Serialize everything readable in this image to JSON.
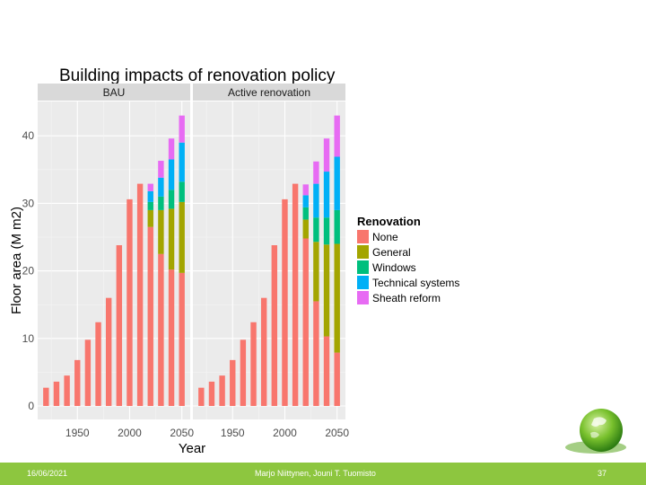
{
  "chart_data": {
    "type": "bar",
    "stacked": true,
    "title": "Building impacts of renovation policy",
    "xlabel": "Year",
    "ylabel": "Floor area (M m2)",
    "ylim": [
      0,
      44
    ],
    "yticks": [
      0,
      10,
      20,
      30,
      40
    ],
    "xlim": [
      1912,
      2058
    ],
    "xticks": [
      1950,
      2000,
      2050
    ],
    "legend": {
      "title": "Renovation",
      "position": "right",
      "entries": [
        "None",
        "General",
        "Windows",
        "Technical systems",
        "Sheath reform"
      ]
    },
    "colors": {
      "None": "#f8766d",
      "General": "#a3a500",
      "Windows": "#00bf7d",
      "Technical systems": "#00b0f6",
      "Sheath reform": "#e76bf3",
      "panel_bg": "#ebebeb",
      "strip_bg": "#d9d9d9",
      "grid_major": "#ffffff"
    },
    "panels": [
      {
        "name": "BAU",
        "bars": [
          {
            "x": 1920,
            "None": 2.7
          },
          {
            "x": 1930,
            "None": 3.6
          },
          {
            "x": 1940,
            "None": 4.5
          },
          {
            "x": 1950,
            "None": 6.8
          },
          {
            "x": 1960,
            "None": 9.8
          },
          {
            "x": 1970,
            "None": 12.4
          },
          {
            "x": 1980,
            "None": 16.0
          },
          {
            "x": 1990,
            "None": 23.8
          },
          {
            "x": 2000,
            "None": 30.6
          },
          {
            "x": 2010,
            "None": 32.9
          },
          {
            "x": 2020,
            "None": 26.5,
            "General": 2.5,
            "Windows": 1.2,
            "Technical systems": 1.6,
            "Sheath reform": 1.1
          },
          {
            "x": 2030,
            "None": 22.5,
            "General": 6.5,
            "Windows": 2.0,
            "Technical systems": 2.8,
            "Sheath reform": 2.5
          },
          {
            "x": 2040,
            "None": 20.2,
            "General": 9.0,
            "Windows": 2.8,
            "Technical systems": 4.5,
            "Sheath reform": 3.1
          },
          {
            "x": 2050,
            "None": 19.7,
            "General": 10.5,
            "Windows": 3.0,
            "Technical systems": 5.8,
            "Sheath reform": 4.0
          }
        ]
      },
      {
        "name": "Active renovation",
        "bars": [
          {
            "x": 1920,
            "None": 2.7
          },
          {
            "x": 1930,
            "None": 3.6
          },
          {
            "x": 1940,
            "None": 4.5
          },
          {
            "x": 1950,
            "None": 6.8
          },
          {
            "x": 1960,
            "None": 9.8
          },
          {
            "x": 1970,
            "None": 12.4
          },
          {
            "x": 1980,
            "None": 16.0
          },
          {
            "x": 1990,
            "None": 23.8
          },
          {
            "x": 2000,
            "None": 30.6
          },
          {
            "x": 2010,
            "None": 32.9
          },
          {
            "x": 2020,
            "None": 24.8,
            "General": 2.8,
            "Windows": 1.8,
            "Technical systems": 1.8,
            "Sheath reform": 1.6
          },
          {
            "x": 2030,
            "None": 15.5,
            "General": 8.8,
            "Windows": 3.6,
            "Technical systems": 5.0,
            "Sheath reform": 3.3
          },
          {
            "x": 2040,
            "None": 10.3,
            "General": 13.6,
            "Windows": 4.0,
            "Technical systems": 6.8,
            "Sheath reform": 4.9
          },
          {
            "x": 2050,
            "None": 7.9,
            "General": 16.1,
            "Windows": 5.0,
            "Technical systems": 7.9,
            "Sheath reform": 6.1
          }
        ]
      }
    ]
  },
  "footer": {
    "date": "16/06/2021",
    "authors": "Marjo Niittynen, Jouni T. Tuomisto",
    "page": "37"
  }
}
